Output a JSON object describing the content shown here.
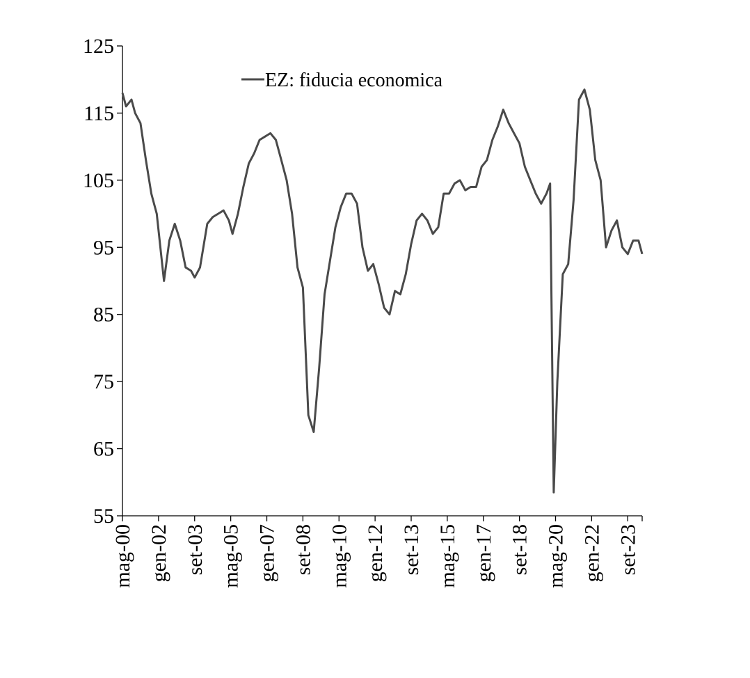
{
  "chart_data": {
    "type": "line",
    "ylim": [
      55,
      125
    ],
    "yticks": [
      55,
      65,
      75,
      85,
      95,
      105,
      115,
      125
    ],
    "xlim": [
      "2000-05",
      "2024-05"
    ],
    "x_tick_labels": [
      {
        "date": "2000-05",
        "label": "mag-00"
      },
      {
        "date": "2002-01",
        "label": "gen-02"
      },
      {
        "date": "2003-09",
        "label": "set-03"
      },
      {
        "date": "2005-05",
        "label": "mag-05"
      },
      {
        "date": "2007-01",
        "label": "gen-07"
      },
      {
        "date": "2008-09",
        "label": "set-08"
      },
      {
        "date": "2010-05",
        "label": "mag-10"
      },
      {
        "date": "2012-01",
        "label": "gen-12"
      },
      {
        "date": "2013-09",
        "label": "set-13"
      },
      {
        "date": "2015-05",
        "label": "mag-15"
      },
      {
        "date": "2017-01",
        "label": "gen-17"
      },
      {
        "date": "2018-09",
        "label": "set-18"
      },
      {
        "date": "2020-05",
        "label": "mag-20"
      },
      {
        "date": "2022-01",
        "label": "gen-22"
      },
      {
        "date": "2023-09",
        "label": "set-23"
      }
    ],
    "grid": false,
    "legend": {
      "position": "top-center",
      "label": "EZ: fiducia economica"
    },
    "colors": {
      "line": "#4a4a4a",
      "axis": "#000000"
    },
    "series": [
      {
        "name": "EZ: fiducia economica",
        "points": [
          [
            "2000-05",
            118.0
          ],
          [
            "2000-07",
            116.0
          ],
          [
            "2000-10",
            117.0
          ],
          [
            "2000-12",
            115.0
          ],
          [
            "2001-03",
            113.5
          ],
          [
            "2001-06",
            108.0
          ],
          [
            "2001-09",
            103.0
          ],
          [
            "2001-12",
            100.0
          ],
          [
            "2002-04",
            90.0
          ],
          [
            "2002-07",
            96.0
          ],
          [
            "2002-10",
            98.5
          ],
          [
            "2003-01",
            96.0
          ],
          [
            "2003-04",
            92.0
          ],
          [
            "2003-07",
            91.5
          ],
          [
            "2003-09",
            90.5
          ],
          [
            "2003-12",
            92.0
          ],
          [
            "2004-04",
            98.5
          ],
          [
            "2004-07",
            99.5
          ],
          [
            "2004-10",
            100.0
          ],
          [
            "2005-01",
            100.5
          ],
          [
            "2005-04",
            99.0
          ],
          [
            "2005-06",
            97.0
          ],
          [
            "2005-09",
            100.0
          ],
          [
            "2005-12",
            104.0
          ],
          [
            "2006-03",
            107.5
          ],
          [
            "2006-06",
            109.0
          ],
          [
            "2006-09",
            111.0
          ],
          [
            "2006-12",
            111.5
          ],
          [
            "2007-03",
            112.0
          ],
          [
            "2007-06",
            111.0
          ],
          [
            "2007-09",
            108.0
          ],
          [
            "2007-12",
            105.0
          ],
          [
            "2008-03",
            100.0
          ],
          [
            "2008-06",
            92.0
          ],
          [
            "2008-09",
            89.0
          ],
          [
            "2008-12",
            70.0
          ],
          [
            "2009-03",
            67.5
          ],
          [
            "2009-06",
            77.0
          ],
          [
            "2009-09",
            88.0
          ],
          [
            "2009-12",
            93.0
          ],
          [
            "2010-03",
            98.0
          ],
          [
            "2010-06",
            101.0
          ],
          [
            "2010-09",
            103.0
          ],
          [
            "2010-12",
            103.0
          ],
          [
            "2011-03",
            101.5
          ],
          [
            "2011-06",
            95.0
          ],
          [
            "2011-09",
            91.5
          ],
          [
            "2011-12",
            92.5
          ],
          [
            "2012-03",
            89.5
          ],
          [
            "2012-06",
            86.0
          ],
          [
            "2012-09",
            85.0
          ],
          [
            "2012-12",
            88.5
          ],
          [
            "2013-03",
            88.0
          ],
          [
            "2013-06",
            91.0
          ],
          [
            "2013-09",
            95.5
          ],
          [
            "2013-12",
            99.0
          ],
          [
            "2014-03",
            100.0
          ],
          [
            "2014-06",
            99.0
          ],
          [
            "2014-09",
            97.0
          ],
          [
            "2014-12",
            98.0
          ],
          [
            "2015-03",
            103.0
          ],
          [
            "2015-06",
            103.0
          ],
          [
            "2015-09",
            104.5
          ],
          [
            "2015-12",
            105.0
          ],
          [
            "2016-03",
            103.5
          ],
          [
            "2016-06",
            104.0
          ],
          [
            "2016-09",
            104.0
          ],
          [
            "2016-12",
            107.0
          ],
          [
            "2017-03",
            108.0
          ],
          [
            "2017-06",
            111.0
          ],
          [
            "2017-09",
            113.0
          ],
          [
            "2017-12",
            115.5
          ],
          [
            "2018-03",
            113.5
          ],
          [
            "2018-06",
            112.0
          ],
          [
            "2018-09",
            110.5
          ],
          [
            "2018-12",
            107.0
          ],
          [
            "2019-03",
            105.0
          ],
          [
            "2019-06",
            103.0
          ],
          [
            "2019-09",
            101.5
          ],
          [
            "2019-12",
            103.0
          ],
          [
            "2020-02",
            104.5
          ],
          [
            "2020-04",
            58.5
          ],
          [
            "2020-06",
            75.0
          ],
          [
            "2020-09",
            91.0
          ],
          [
            "2020-12",
            92.5
          ],
          [
            "2021-03",
            102.0
          ],
          [
            "2021-06",
            117.0
          ],
          [
            "2021-09",
            118.5
          ],
          [
            "2021-12",
            115.5
          ],
          [
            "2022-03",
            108.0
          ],
          [
            "2022-06",
            105.0
          ],
          [
            "2022-09",
            95.0
          ],
          [
            "2022-12",
            97.5
          ],
          [
            "2023-03",
            99.0
          ],
          [
            "2023-06",
            95.0
          ],
          [
            "2023-09",
            94.0
          ],
          [
            "2023-12",
            96.0
          ],
          [
            "2024-03",
            96.0
          ],
          [
            "2024-05",
            94.0
          ]
        ]
      }
    ]
  }
}
